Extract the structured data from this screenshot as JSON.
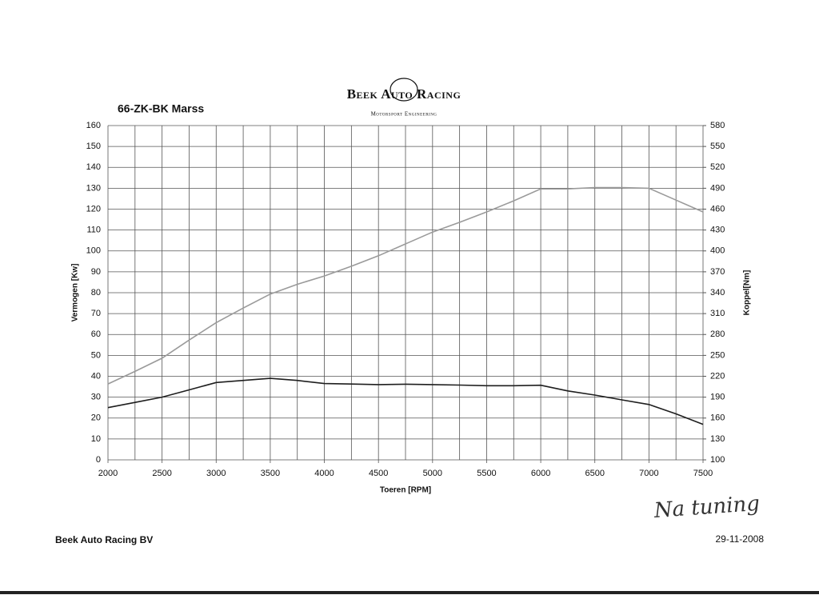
{
  "chart_data": {
    "type": "line",
    "title": "66-ZK-BK Marss",
    "logo": "Beek Auto Racing",
    "logo_subtitle": "Motorsport Engineering",
    "xlabel": "Toeren [RPM]",
    "ylabel": "Vermogen [Kw]",
    "y2label": "Koppel[Nm]",
    "footer": "Beek Auto Racing BV",
    "date": "29-11-2008",
    "annotation": "Na tuning",
    "x": [
      2000,
      2250,
      2500,
      2750,
      3000,
      3250,
      3500,
      3750,
      4000,
      4250,
      4500,
      4750,
      5000,
      5250,
      5500,
      5750,
      6000,
      6250,
      6500,
      6750,
      7000,
      7250,
      7500
    ],
    "series": [
      {
        "color": "#1e1e1e",
        "values": [
          25,
          27.5,
          30,
          33.5,
          37,
          38,
          39,
          38,
          36.5,
          36.3,
          36,
          36.2,
          36,
          35.8,
          35.5,
          35.5,
          35.7,
          33,
          31,
          28.7,
          26.5,
          22,
          17
        ]
      },
      {
        "color": "#9a9a9a",
        "axis": "y2",
        "values": [
          209,
          227,
          246,
          272,
          297,
          318,
          338,
          352,
          364,
          378,
          393,
          410,
          427,
          441,
          456,
          472,
          489,
          489,
          491,
          491,
          490,
          473,
          456
        ]
      }
    ],
    "xlim": [
      2000,
      7500
    ],
    "xticks": [
      2000,
      2500,
      3000,
      3500,
      4000,
      4500,
      5000,
      5500,
      6000,
      6500,
      7000,
      7500
    ],
    "x_minor_grid": [
      2250,
      2750,
      3250,
      3750,
      4250,
      4750,
      5250,
      5750,
      6250,
      6750,
      7250
    ],
    "ylim": [
      0,
      160
    ],
    "yticks": [
      0,
      10,
      20,
      30,
      40,
      50,
      60,
      70,
      80,
      90,
      100,
      110,
      120,
      130,
      140,
      150,
      160
    ],
    "y2lim": [
      100,
      580
    ],
    "y2ticks": [
      100,
      130,
      160,
      190,
      220,
      250,
      280,
      310,
      340,
      370,
      400,
      430,
      460,
      490,
      520,
      550,
      580
    ],
    "grid": true
  }
}
